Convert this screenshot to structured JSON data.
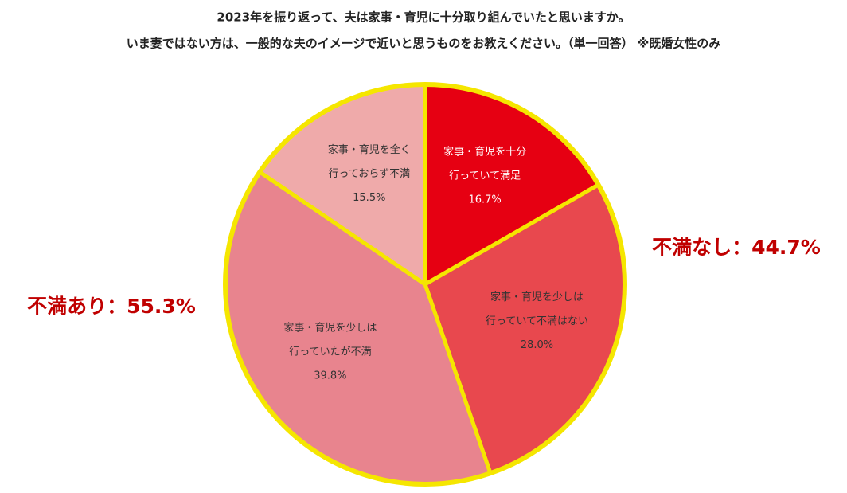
{
  "chart_data": {
    "type": "pie",
    "title": "2023年を振り返って、夫は家事・育児に十分取り組んでいたと思いますか。",
    "subtitle": "いま妻ではない方は、一般的な夫のイメージで近いと思うものをお教えください。（単一回答） ※既婚女性のみ",
    "categories": [
      [
        "家事・育児を十分",
        "行っていて満足"
      ],
      [
        "家事・育児を少しは",
        "行っていて不満はない"
      ],
      [
        "家事・育児を少しは",
        "行っていたが不満"
      ],
      [
        "家事・育児を全く",
        "行っておらず不満"
      ]
    ],
    "values": [
      16.7,
      28.0,
      39.8,
      15.5
    ],
    "value_labels": [
      "16.7%",
      "28.0%",
      "39.8%",
      "15.5%"
    ],
    "colors": [
      "#e60012",
      "#e8484e",
      "#e8848e",
      "#efaaaa"
    ],
    "label_colors": [
      "#ffffff",
      "#333333",
      "#333333",
      "#333333"
    ],
    "annotations": [
      "不満なし：44.7%",
      "不満あり：55.3%"
    ]
  }
}
